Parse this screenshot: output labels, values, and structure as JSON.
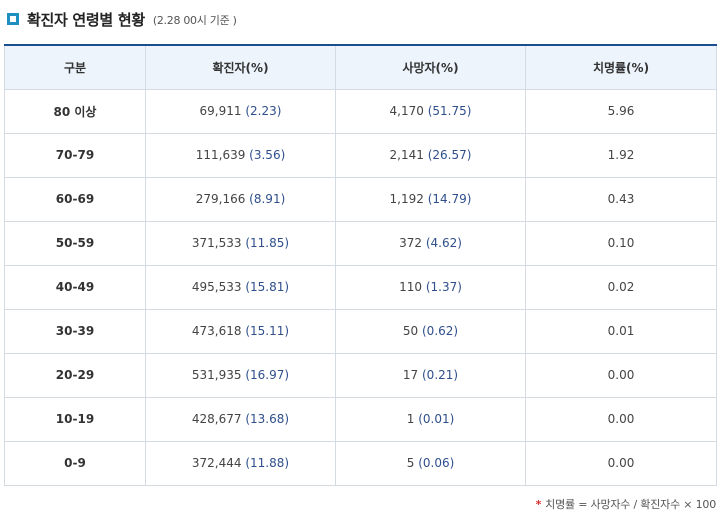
{
  "header": {
    "title": "확진자 연령별 현황",
    "subtitle": "(2.28 00시 기준 )",
    "marker_color": "#1e8fbf"
  },
  "table": {
    "columns": [
      "구분",
      "확진자(%)",
      "사망자(%)",
      "치명률(%)"
    ],
    "rows": [
      {
        "age": "80 이상",
        "confirmed": "69,911",
        "confirmed_pct": "(2.23)",
        "deaths": "4,170",
        "deaths_pct": "(51.75)",
        "cfr": "5.96"
      },
      {
        "age": "70-79",
        "confirmed": "111,639",
        "confirmed_pct": "(3.56)",
        "deaths": "2,141",
        "deaths_pct": "(26.57)",
        "cfr": "1.92"
      },
      {
        "age": "60-69",
        "confirmed": "279,166",
        "confirmed_pct": "(8.91)",
        "deaths": "1,192",
        "deaths_pct": "(14.79)",
        "cfr": "0.43"
      },
      {
        "age": "50-59",
        "confirmed": "371,533",
        "confirmed_pct": "(11.85)",
        "deaths": "372",
        "deaths_pct": "(4.62)",
        "cfr": "0.10"
      },
      {
        "age": "40-49",
        "confirmed": "495,533",
        "confirmed_pct": "(15.81)",
        "deaths": "110",
        "deaths_pct": "(1.37)",
        "cfr": "0.02"
      },
      {
        "age": "30-39",
        "confirmed": "473,618",
        "confirmed_pct": "(15.11)",
        "deaths": "50",
        "deaths_pct": "(0.62)",
        "cfr": "0.01"
      },
      {
        "age": "20-29",
        "confirmed": "531,935",
        "confirmed_pct": "(16.97)",
        "deaths": "17",
        "deaths_pct": "(0.21)",
        "cfr": "0.00"
      },
      {
        "age": "10-19",
        "confirmed": "428,677",
        "confirmed_pct": "(13.68)",
        "deaths": "1",
        "deaths_pct": "(0.01)",
        "cfr": "0.00"
      },
      {
        "age": "0-9",
        "confirmed": "372,444",
        "confirmed_pct": "(11.88)",
        "deaths": "5",
        "deaths_pct": "(0.06)",
        "cfr": "0.00"
      }
    ],
    "header_top_border_color": "#1b4e8e",
    "header_bg_color": "#edf4fb",
    "value_accent_color": "#2f4f8c"
  },
  "footnote": {
    "star": "*",
    "text": "치명률 = 사망자수 / 확진자수 × 100",
    "star_color": "#d62d2d"
  }
}
